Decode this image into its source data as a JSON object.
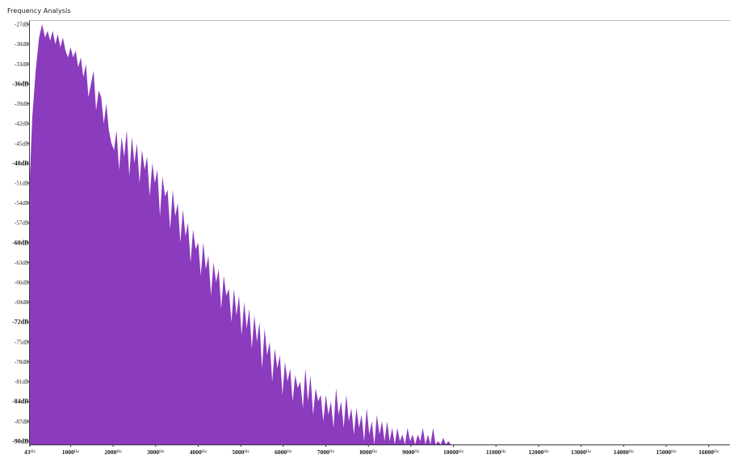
{
  "window": {
    "title": "Frequency Analysis"
  },
  "chart_data": {
    "type": "area",
    "color": "#8b3bbd",
    "y_unit": "dB",
    "x_unit": "Hz",
    "ylim": [
      -90.5,
      -26.5
    ],
    "xlim": [
      43,
      16500
    ],
    "y_ticks": [
      {
        "value": -27,
        "label": "-27dB",
        "major": false
      },
      {
        "value": -30,
        "label": "-30dB",
        "major": false
      },
      {
        "value": -33,
        "label": "-33dB",
        "major": false
      },
      {
        "value": -36,
        "label": "-36dB",
        "major": true
      },
      {
        "value": -39,
        "label": "-39dB",
        "major": false
      },
      {
        "value": -42,
        "label": "-42dB",
        "major": false
      },
      {
        "value": -45,
        "label": "-45dB",
        "major": false
      },
      {
        "value": -48,
        "label": "-48dB",
        "major": true
      },
      {
        "value": -51,
        "label": "-51dB",
        "major": false
      },
      {
        "value": -54,
        "label": "-54dB",
        "major": false
      },
      {
        "value": -57,
        "label": "-57dB",
        "major": false
      },
      {
        "value": -60,
        "label": "-60dB",
        "major": true
      },
      {
        "value": -63,
        "label": "-63dB",
        "major": false
      },
      {
        "value": -66,
        "label": "-66dB",
        "major": false
      },
      {
        "value": -69,
        "label": "-69dB",
        "major": false
      },
      {
        "value": -72,
        "label": "-72dB",
        "major": true
      },
      {
        "value": -75,
        "label": "-75dB",
        "major": false
      },
      {
        "value": -78,
        "label": "-78dB",
        "major": false
      },
      {
        "value": -81,
        "label": "-81dB",
        "major": false
      },
      {
        "value": -84,
        "label": "-84dB",
        "major": true
      },
      {
        "value": -87,
        "label": "-87dB",
        "major": false
      },
      {
        "value": -90,
        "label": "-90dB",
        "major": true
      }
    ],
    "x_ticks": [
      {
        "value": 43,
        "label": "43"
      },
      {
        "value": 1000,
        "label": "1000"
      },
      {
        "value": 2000,
        "label": "2000"
      },
      {
        "value": 3000,
        "label": "3000"
      },
      {
        "value": 4000,
        "label": "4000"
      },
      {
        "value": 5000,
        "label": "5000"
      },
      {
        "value": 6000,
        "label": "6000"
      },
      {
        "value": 7000,
        "label": "7000"
      },
      {
        "value": 8000,
        "label": "8000"
      },
      {
        "value": 9000,
        "label": "9000"
      },
      {
        "value": 10000,
        "label": "10000"
      },
      {
        "value": 11000,
        "label": "11000"
      },
      {
        "value": 12000,
        "label": "12000"
      },
      {
        "value": 13000,
        "label": "13000"
      },
      {
        "value": 14000,
        "label": "14000"
      },
      {
        "value": 15000,
        "label": "15000"
      },
      {
        "value": 16000,
        "label": "16000"
      }
    ],
    "spectrum": {
      "x": [
        43,
        100,
        180,
        260,
        330,
        400,
        460,
        520,
        580,
        640,
        700,
        760,
        820,
        880,
        940,
        1000,
        1060,
        1120,
        1180,
        1240,
        1300,
        1360,
        1420,
        1480,
        1540,
        1600,
        1660,
        1720,
        1780,
        1840,
        1900,
        1960,
        2020,
        2080,
        2140,
        2200,
        2260,
        2320,
        2380,
        2440,
        2500,
        2560,
        2620,
        2680,
        2740,
        2800,
        2860,
        2920,
        2980,
        3040,
        3100,
        3160,
        3220,
        3280,
        3340,
        3400,
        3460,
        3520,
        3580,
        3640,
        3700,
        3760,
        3820,
        3880,
        3940,
        4000,
        4060,
        4120,
        4180,
        4240,
        4300,
        4360,
        4420,
        4480,
        4540,
        4600,
        4660,
        4720,
        4780,
        4840,
        4900,
        4960,
        5020,
        5080,
        5140,
        5200,
        5260,
        5320,
        5380,
        5440,
        5500,
        5560,
        5620,
        5680,
        5740,
        5800,
        5860,
        5920,
        5980,
        6040,
        6100,
        6160,
        6220,
        6280,
        6340,
        6400,
        6460,
        6520,
        6580,
        6640,
        6700,
        6760,
        6820,
        6880,
        6940,
        7000,
        7060,
        7120,
        7180,
        7240,
        7300,
        7360,
        7420,
        7480,
        7540,
        7600,
        7660,
        7720,
        7780,
        7840,
        7900,
        7960,
        8020,
        8080,
        8140,
        8200,
        8260,
        8320,
        8380,
        8440,
        8500,
        8560,
        8620,
        8680,
        8740,
        8800,
        8860,
        8920,
        8980,
        9040,
        9100,
        9160,
        9220,
        9280,
        9340,
        9400,
        9460,
        9520,
        9580,
        9640,
        9700,
        9760,
        9820,
        9880,
        9940,
        10000,
        10060,
        10100
      ],
      "y": [
        -50,
        -41,
        -34,
        -29,
        -27,
        -29,
        -28,
        -29.5,
        -28,
        -30,
        -28.5,
        -30.5,
        -29,
        -31,
        -32,
        -30.5,
        -32,
        -31,
        -33.5,
        -32,
        -35,
        -33,
        -38,
        -36,
        -34,
        -40,
        -37,
        -38,
        -42,
        -39,
        -43,
        -45,
        -46,
        -43,
        -49,
        -44,
        -47,
        -43,
        -50,
        -44,
        -48,
        -45,
        -51,
        -46,
        -49,
        -47,
        -53,
        -48,
        -51,
        -49,
        -56,
        -50,
        -53,
        -52,
        -58,
        -52,
        -56,
        -54,
        -60,
        -55,
        -59,
        -57,
        -63,
        -58,
        -61,
        -60,
        -65,
        -60,
        -64,
        -62,
        -68,
        -63,
        -66,
        -64,
        -70,
        -65,
        -68,
        -67,
        -72,
        -67,
        -71,
        -68,
        -74,
        -69,
        -73,
        -70,
        -76,
        -71,
        -75,
        -72,
        -79,
        -73,
        -77,
        -75,
        -81,
        -76,
        -79,
        -77,
        -83,
        -78,
        -81,
        -79,
        -84,
        -80,
        -82,
        -81,
        -85,
        -79,
        -84,
        -80,
        -86,
        -82,
        -84,
        -83,
        -87,
        -83,
        -86,
        -84,
        -88,
        -82,
        -86,
        -84,
        -88,
        -83,
        -87,
        -85,
        -89,
        -85,
        -88,
        -86,
        -90,
        -85,
        -89,
        -87,
        -91,
        -86,
        -89,
        -87,
        -90,
        -87,
        -90,
        -88,
        -91,
        -88,
        -90,
        -89,
        -91,
        -88,
        -90,
        -89,
        -91,
        -89,
        -90,
        -88,
        -91,
        -89,
        -90.5,
        -88,
        -91,
        -90,
        -91,
        -89.5,
        -91,
        -90,
        -91,
        -90.5,
        -91,
        -91
      ]
    }
  }
}
